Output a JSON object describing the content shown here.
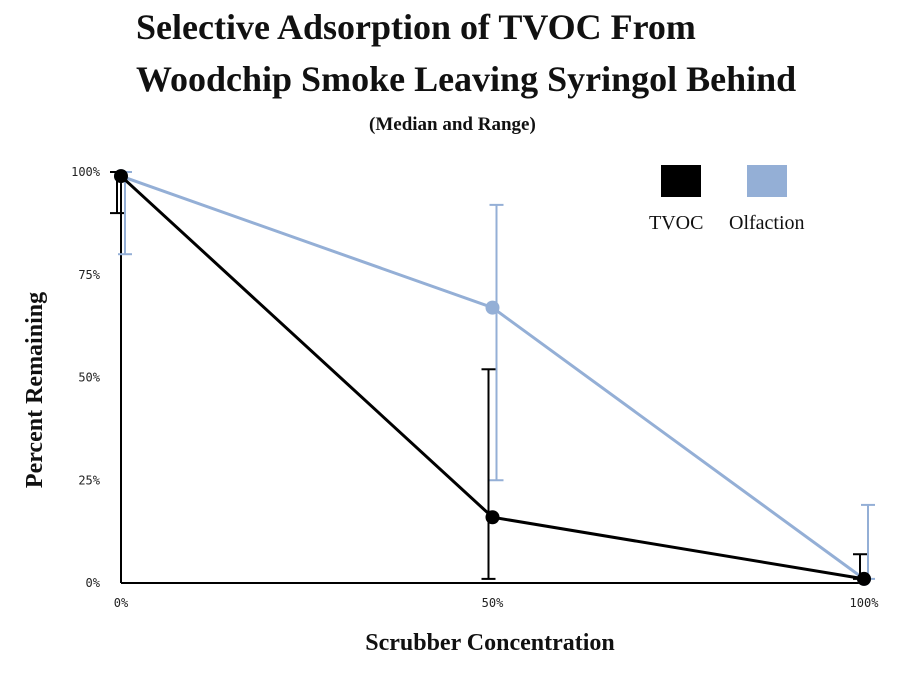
{
  "chart_data": {
    "type": "line",
    "title_line1": "Selective Adsorption of TVOC From",
    "title_line2": "Woodchip Smoke Leaving Syringol Behind",
    "subtitle": "(Median and Range)",
    "xlabel": "Scrubber Concentration",
    "ylabel": "Percent Remaining",
    "categories": [
      "0%",
      "50%",
      "100%"
    ],
    "y_ticks": [
      "0%",
      "25%",
      "50%",
      "75%",
      "100%"
    ],
    "ylim": [
      0,
      100
    ],
    "grid": false,
    "legend_position": "top-right",
    "series": [
      {
        "name": "TVOC",
        "color": "#000000",
        "values": [
          99,
          16,
          1
        ],
        "range_low": [
          90,
          1,
          1
        ],
        "range_high": [
          100,
          52,
          7
        ]
      },
      {
        "name": "Olfaction",
        "color": "#94afd6",
        "values": [
          99,
          67,
          1
        ],
        "range_low": [
          80,
          25,
          1
        ],
        "range_high": [
          100,
          92,
          19
        ]
      }
    ]
  }
}
